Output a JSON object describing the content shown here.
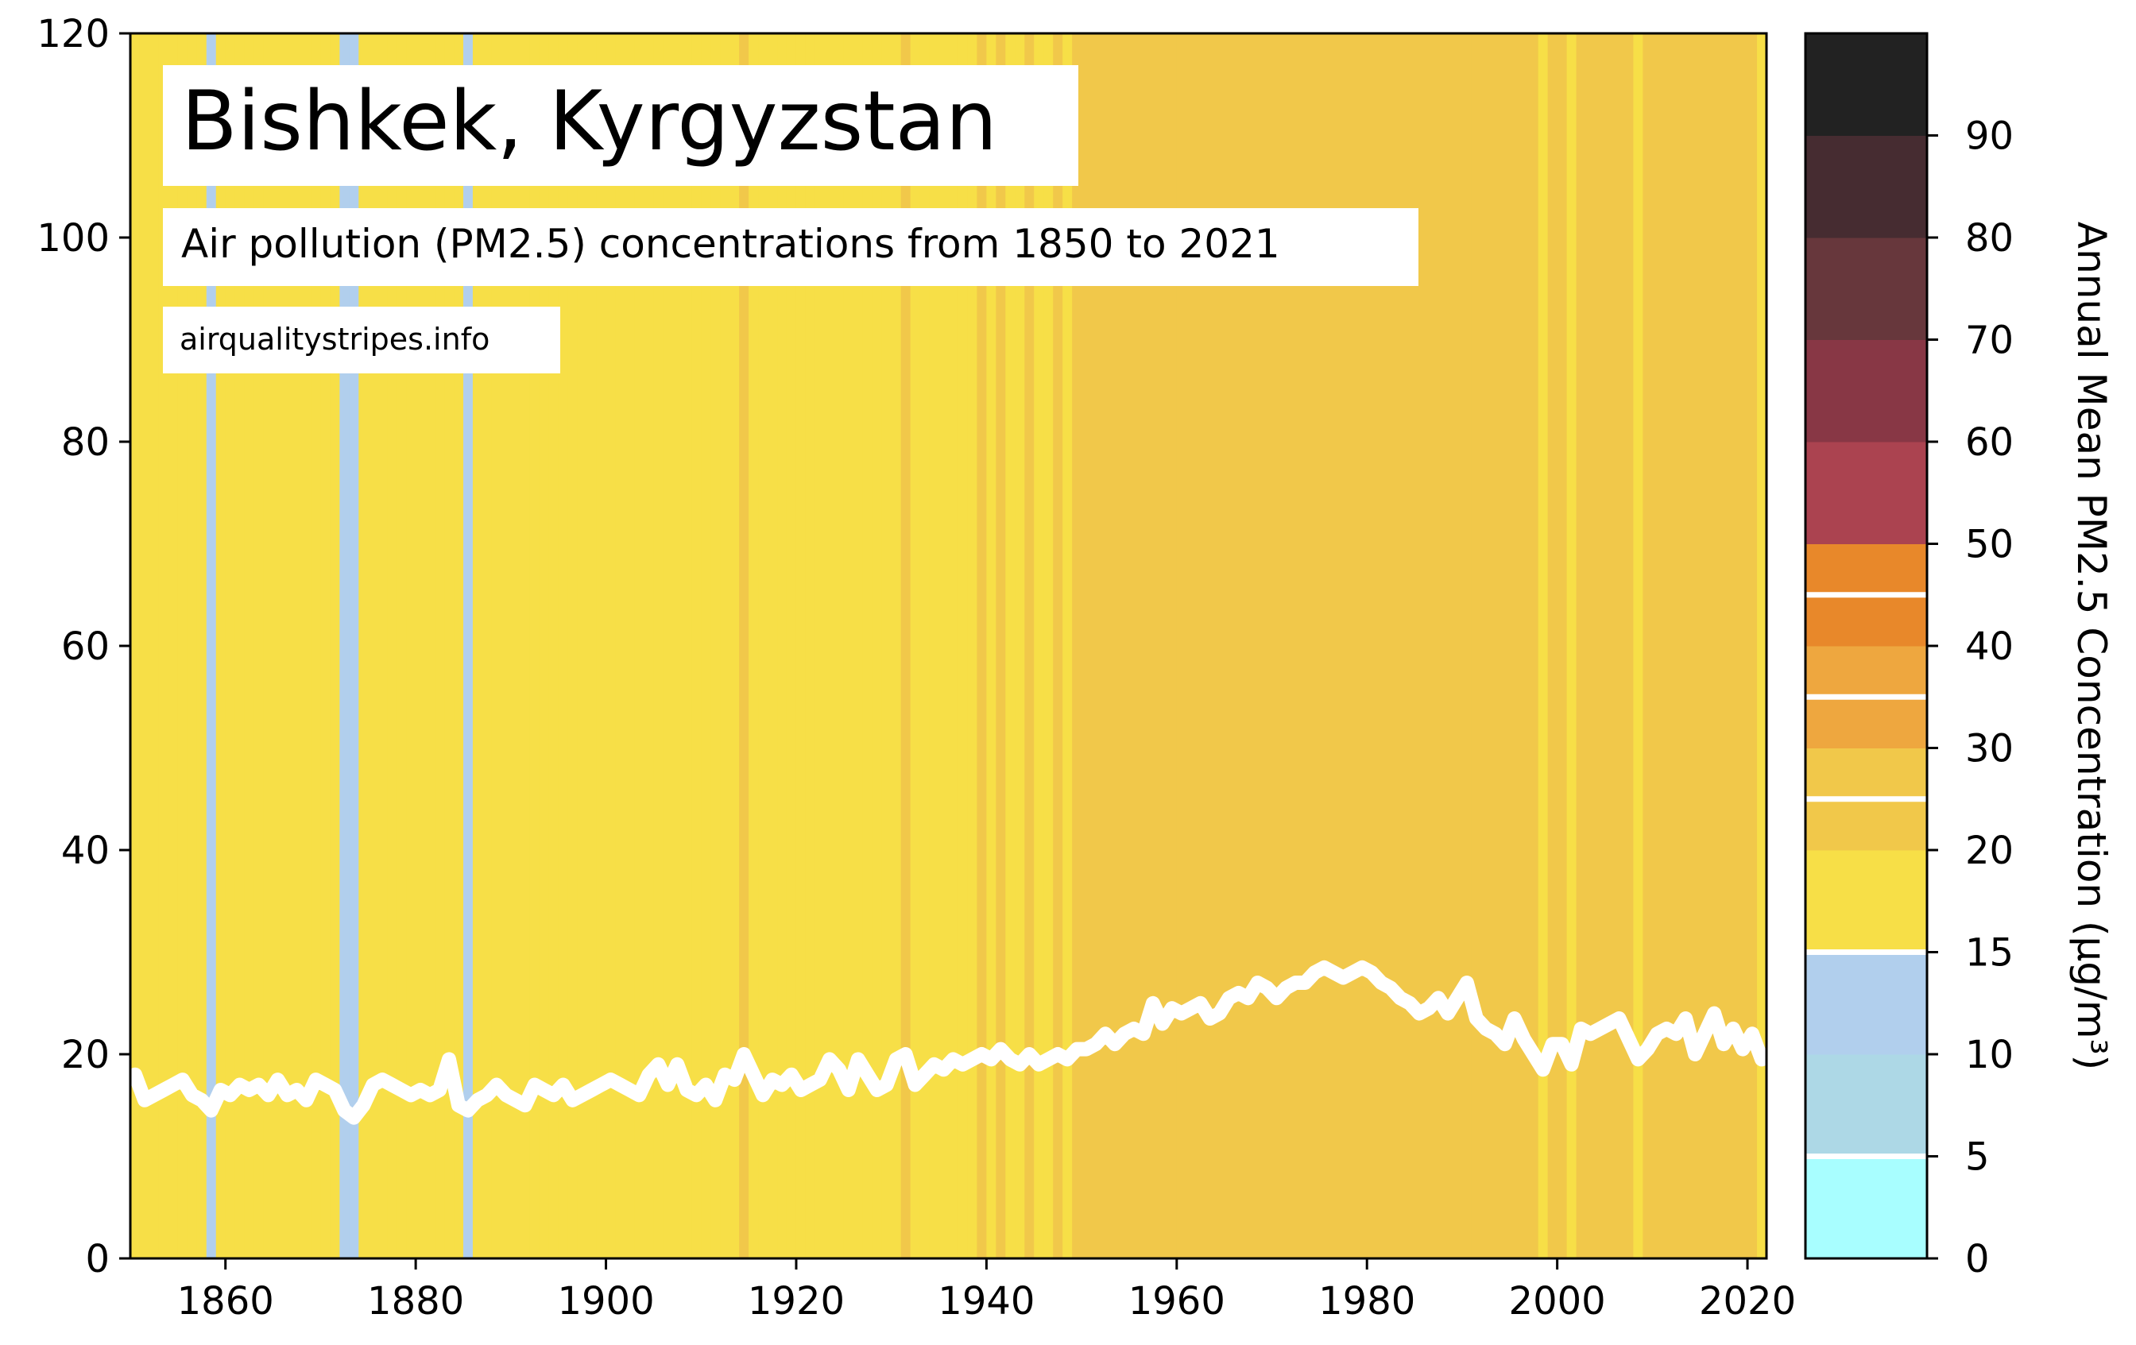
{
  "chart_data": {
    "type": "line",
    "title": "Bishkek, Kyrgyzstan",
    "subtitle": "Air pollution (PM2.5) concentrations from 1850 to 2021",
    "source": "airqualitystripes.info",
    "xlim": [
      1850,
      2022
    ],
    "ylim": [
      0,
      120
    ],
    "x_ticks": [
      "1860",
      "1880",
      "1900",
      "1920",
      "1940",
      "1960",
      "1980",
      "2000",
      "2020"
    ],
    "y_ticks": [
      "0",
      "20",
      "40",
      "60",
      "80",
      "100",
      "120"
    ],
    "line_color": "#ffffff",
    "series": [
      {
        "x_start": 1850,
        "x_step": 1,
        "values": [
          18,
          15.5,
          16,
          16.5,
          17,
          17.5,
          16,
          15.5,
          14.5,
          16.5,
          16,
          17,
          16.5,
          17,
          16,
          17.5,
          16,
          16.5,
          15.5,
          17.5,
          17,
          16.5,
          14.5,
          13.8,
          15,
          17,
          17.5,
          17,
          16.5,
          16,
          16.5,
          16,
          16.5,
          19.5,
          15,
          14.5,
          15.5,
          16,
          17,
          16,
          15.5,
          15,
          17,
          16.5,
          16,
          17,
          15.5,
          16,
          16.5,
          17,
          17.5,
          17,
          16.5,
          16,
          18,
          19,
          17,
          19,
          16.5,
          16,
          17,
          15.5,
          18,
          17.5,
          20,
          18,
          16,
          17.5,
          17,
          18,
          16.5,
          17,
          17.5,
          19.5,
          18.5,
          16.5,
          19.5,
          18,
          16.5,
          17,
          19.5,
          20,
          17,
          18,
          19,
          18.5,
          19.5,
          19,
          19.5,
          20,
          19.5,
          20.5,
          19.5,
          19,
          20,
          19,
          19.5,
          20,
          19.5,
          20.5,
          20.5,
          21,
          22,
          21,
          22,
          22.5,
          22,
          25,
          23,
          24.5,
          24,
          24.5,
          25,
          23.5,
          24,
          25.5,
          26,
          25.5,
          27,
          26.5,
          25.5,
          26.5,
          27,
          27,
          28,
          28.5,
          28,
          27.5,
          28,
          28.5,
          28,
          27,
          26.5,
          25.5,
          25,
          24,
          24.5,
          25.5,
          24,
          25.5,
          27,
          23.5,
          22.5,
          22,
          21,
          23.5,
          21.5,
          20,
          18.5,
          21,
          21,
          19,
          22.5,
          22,
          22.5,
          23,
          23.5,
          21.5,
          19.5,
          20.5,
          22,
          22.5,
          22,
          23.5,
          20,
          22,
          24,
          21,
          22.5,
          20.5,
          22,
          19.5
        ]
      }
    ],
    "colorbar": {
      "label": "Annual Mean PM2.5 Concentration (μg/m³)",
      "tick_labels": [
        "0",
        "5",
        "10",
        "15",
        "20",
        "30",
        "40",
        "50",
        "60",
        "70",
        "80",
        "90"
      ],
      "bands": [
        {
          "from": 0,
          "to": 5,
          "color": "#a8feff"
        },
        {
          "from": 5,
          "to": 10,
          "color": "#add8e6"
        },
        {
          "from": 10,
          "to": 15,
          "color": "#b1cfed"
        },
        {
          "from": 15,
          "to": 20,
          "color": "#f7df47"
        },
        {
          "from": 20,
          "to": 30,
          "color": "#f1c84a"
        },
        {
          "from": 30,
          "to": 40,
          "color": "#eea73f"
        },
        {
          "from": 40,
          "to": 50,
          "color": "#e8882a"
        },
        {
          "from": 50,
          "to": 60,
          "color": "#ab4350"
        },
        {
          "from": 60,
          "to": 70,
          "color": "#883745"
        },
        {
          "from": 70,
          "to": 80,
          "color": "#67373c"
        },
        {
          "from": 80,
          "to": 90,
          "color": "#462c31"
        },
        {
          "from": 90,
          "to": 100,
          "color": "#222222"
        }
      ],
      "white_lines_at": [
        5,
        15,
        25,
        35,
        45
      ]
    }
  }
}
